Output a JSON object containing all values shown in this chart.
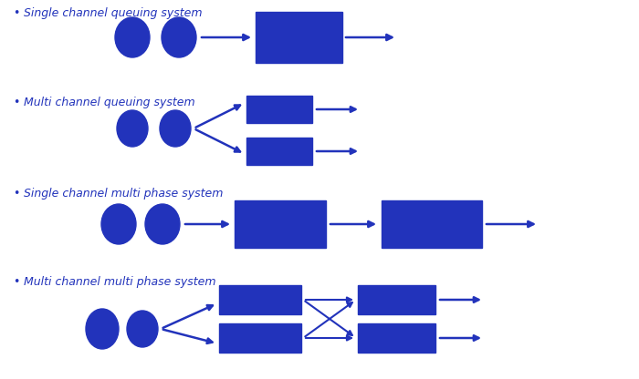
{
  "background_color": "#ffffff",
  "blue": "#2233bb",
  "font_size": 9,
  "sections": [
    "Single channel queuing system",
    "Multi channel queuing system",
    "Single channel multi phase system",
    "Multi channel multi phase system"
  ],
  "bullet": "•"
}
